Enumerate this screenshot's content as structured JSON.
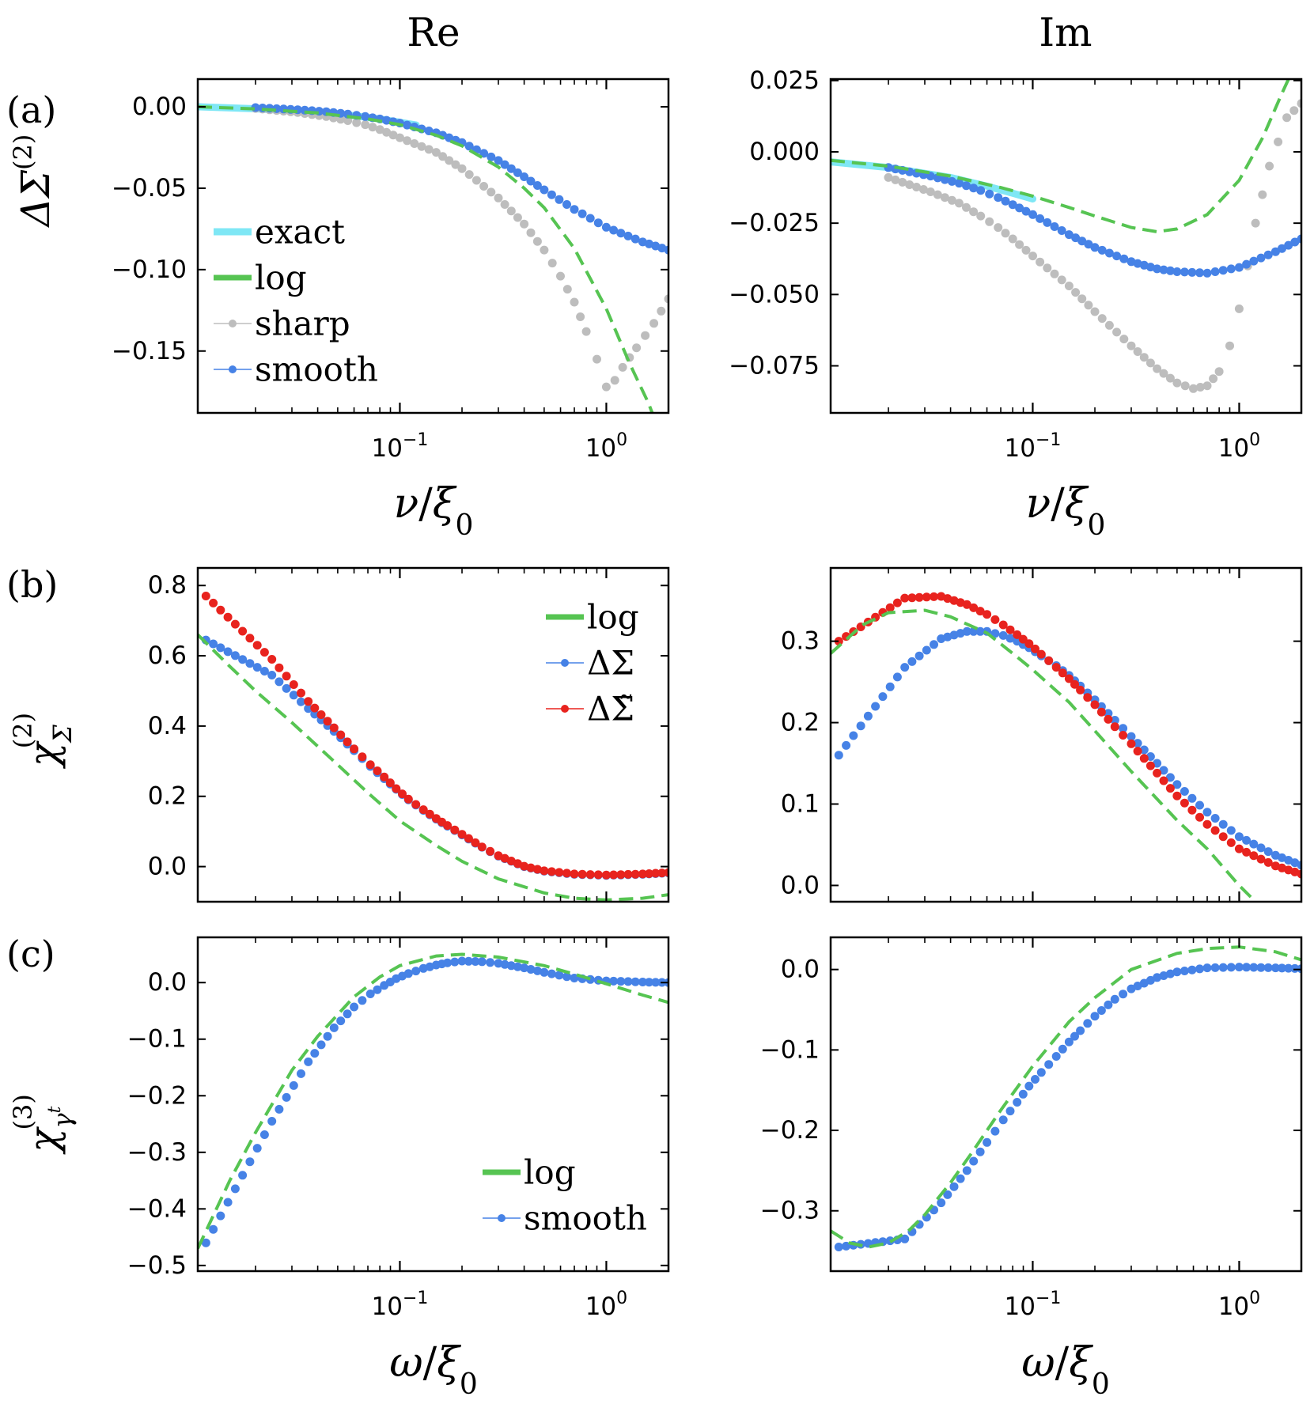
{
  "figure": {
    "column_titles": [
      "Re",
      "Im"
    ],
    "row_labels": [
      "(a)",
      "(b)",
      "(c)"
    ],
    "row_ylabels": [
      {
        "base": "ΔΣ",
        "sup": "(2)",
        "sub": ""
      },
      {
        "base": "χ",
        "sup": "(2)",
        "sub": "Σ"
      },
      {
        "base": "χ",
        "sup": "(3)",
        "sub": "γ",
        "subsup": "t"
      }
    ],
    "xlabels": {
      "a": {
        "num": "ν",
        "den": "ξ",
        "sub": "0"
      },
      "c": {
        "num": "ω",
        "den": "ξ",
        "sub": "0"
      }
    },
    "xtick_labels": [
      {
        "value": 0.1,
        "base": "10",
        "exp": "−1"
      },
      {
        "value": 1,
        "base": "10",
        "exp": "0"
      }
    ],
    "colors": {
      "exact": "#7fe7f5",
      "log": "#56c452",
      "sharp": "#bdbdbd",
      "smooth": "#4682e6",
      "tilde": "#e8231e"
    }
  },
  "chart_data": [
    {
      "id": "a-re",
      "type": "scatter",
      "xscale": "log",
      "xlim": [
        0.0105,
        2.0
      ],
      "ylim": [
        -0.188,
        0.017
      ],
      "yticks": [
        0.0,
        -0.05,
        -0.1,
        -0.15
      ],
      "ytick_labels": [
        "0.00",
        "−0.05",
        "−0.10",
        "−0.15"
      ],
      "legend": {
        "placement": "center-left",
        "entries": [
          "exact",
          "log",
          "sharp",
          "smooth"
        ]
      },
      "series": [
        {
          "name": "exact",
          "kind": "line",
          "x": [
            0.0105,
            0.02,
            0.04,
            0.06,
            0.08,
            0.1,
            0.12
          ],
          "y": [
            0.0,
            -0.0012,
            -0.0035,
            -0.0055,
            -0.0075,
            -0.0095,
            -0.0112
          ]
        },
        {
          "name": "log",
          "kind": "dashed",
          "x": [
            0.0105,
            0.02,
            0.04,
            0.07,
            0.1,
            0.15,
            0.2,
            0.3,
            0.4,
            0.5,
            0.7,
            1.0,
            1.3,
            1.6,
            1.75
          ],
          "y": [
            0.0,
            -0.0013,
            -0.0038,
            -0.0075,
            -0.011,
            -0.0175,
            -0.024,
            -0.037,
            -0.05,
            -0.062,
            -0.087,
            -0.124,
            -0.158,
            -0.182,
            -0.195
          ]
        },
        {
          "name": "sharp",
          "kind": "points",
          "x": [
            0.02,
            0.032,
            0.044,
            0.056,
            0.068,
            0.08,
            0.1,
            0.15,
            0.2,
            0.3,
            0.4,
            0.5,
            0.6,
            0.7,
            0.8,
            0.9,
            1.0,
            1.1,
            1.2,
            1.4,
            1.7,
            2.0
          ],
          "y": [
            -0.001,
            -0.0035,
            -0.006,
            -0.0085,
            -0.011,
            -0.014,
            -0.019,
            -0.028,
            -0.038,
            -0.056,
            -0.072,
            -0.088,
            -0.104,
            -0.12,
            -0.138,
            -0.155,
            -0.172,
            -0.168,
            -0.16,
            -0.148,
            -0.133,
            -0.118
          ]
        },
        {
          "name": "smooth",
          "kind": "points",
          "x": [
            0.02,
            0.032,
            0.044,
            0.056,
            0.068,
            0.08,
            0.1,
            0.15,
            0.2,
            0.3,
            0.4,
            0.5,
            0.7,
            1.0,
            1.5,
            2.0
          ],
          "y": [
            -0.0005,
            -0.0018,
            -0.003,
            -0.0045,
            -0.006,
            -0.0075,
            -0.01,
            -0.016,
            -0.022,
            -0.033,
            -0.043,
            -0.051,
            -0.063,
            -0.074,
            -0.083,
            -0.088
          ]
        }
      ]
    },
    {
      "id": "a-im",
      "type": "scatter",
      "xscale": "log",
      "xlim": [
        0.0105,
        2.0
      ],
      "ylim": [
        -0.0915,
        0.0255
      ],
      "yticks": [
        0.025,
        0.0,
        -0.025,
        -0.05,
        -0.075
      ],
      "ytick_labels": [
        "0.025",
        "0.000",
        "−0.025",
        "−0.050",
        "−0.075"
      ],
      "series": [
        {
          "name": "exact",
          "kind": "line",
          "x": [
            0.0105,
            0.02,
            0.04,
            0.06,
            0.08,
            0.1
          ],
          "y": [
            -0.0035,
            -0.0055,
            -0.009,
            -0.012,
            -0.0145,
            -0.0165
          ]
        },
        {
          "name": "log",
          "kind": "dashed",
          "x": [
            0.0105,
            0.02,
            0.04,
            0.07,
            0.1,
            0.15,
            0.2,
            0.3,
            0.4,
            0.5,
            0.7,
            1.0,
            1.3,
            1.6,
            1.85
          ],
          "y": [
            -0.003,
            -0.005,
            -0.0085,
            -0.0125,
            -0.0155,
            -0.0195,
            -0.0225,
            -0.0265,
            -0.028,
            -0.027,
            -0.022,
            -0.01,
            0.005,
            0.02,
            0.03
          ]
        },
        {
          "name": "sharp",
          "kind": "points",
          "x": [
            0.02,
            0.032,
            0.044,
            0.056,
            0.068,
            0.08,
            0.1,
            0.15,
            0.2,
            0.3,
            0.4,
            0.5,
            0.6,
            0.7,
            0.8,
            0.9,
            1.0,
            1.1,
            1.2,
            1.4,
            1.7,
            2.0
          ],
          "y": [
            -0.009,
            -0.014,
            -0.018,
            -0.0225,
            -0.0265,
            -0.0305,
            -0.0365,
            -0.047,
            -0.056,
            -0.068,
            -0.076,
            -0.081,
            -0.083,
            -0.082,
            -0.077,
            -0.068,
            -0.055,
            -0.04,
            -0.025,
            -0.005,
            0.012,
            0.017
          ]
        },
        {
          "name": "smooth",
          "kind": "points",
          "x": [
            0.02,
            0.032,
            0.044,
            0.056,
            0.068,
            0.08,
            0.1,
            0.15,
            0.2,
            0.3,
            0.4,
            0.5,
            0.7,
            1.0,
            1.5,
            2.0
          ],
          "y": [
            -0.0055,
            -0.0085,
            -0.011,
            -0.0135,
            -0.016,
            -0.0185,
            -0.022,
            -0.029,
            -0.0335,
            -0.0385,
            -0.041,
            -0.042,
            -0.0425,
            -0.0405,
            -0.035,
            -0.0305
          ]
        }
      ]
    },
    {
      "id": "b-re",
      "type": "scatter",
      "xscale": "log",
      "xlim": [
        0.0105,
        2.0
      ],
      "ylim": [
        -0.1,
        0.85
      ],
      "yticks": [
        0.8,
        0.6,
        0.4,
        0.2,
        0.0
      ],
      "ytick_labels": [
        "0.8",
        "0.6",
        "0.4",
        "0.2",
        "0.0"
      ],
      "legend": {
        "placement": "top-right",
        "entries": [
          "log",
          "ΔΣ",
          "ΔΣ̃"
        ]
      },
      "series": [
        {
          "name": "log",
          "kind": "dashed",
          "x": [
            0.0105,
            0.015,
            0.02,
            0.03,
            0.05,
            0.07,
            0.1,
            0.15,
            0.2,
            0.3,
            0.5,
            0.7,
            1.0,
            1.5,
            2.0
          ],
          "y": [
            0.66,
            0.57,
            0.5,
            0.41,
            0.29,
            0.21,
            0.13,
            0.06,
            0.015,
            -0.035,
            -0.075,
            -0.09,
            -0.095,
            -0.09,
            -0.08
          ]
        },
        {
          "name": "ΔΣ",
          "kind": "points",
          "x": [
            0.0115,
            0.024,
            0.036,
            0.048,
            0.06,
            0.072,
            0.084,
            0.096,
            0.11,
            0.13,
            0.15,
            0.17,
            0.2,
            0.25,
            0.3,
            0.4,
            0.5,
            0.7,
            1.0,
            1.5,
            2.0
          ],
          "y": [
            0.645,
            0.545,
            0.45,
            0.385,
            0.33,
            0.285,
            0.25,
            0.22,
            0.19,
            0.16,
            0.135,
            0.115,
            0.09,
            0.055,
            0.03,
            0.0,
            -0.013,
            -0.022,
            -0.025,
            -0.022,
            -0.018
          ]
        },
        {
          "name": "ΔΣ̃",
          "kind": "points",
          "x": [
            0.0115,
            0.024,
            0.036,
            0.048,
            0.06,
            0.072,
            0.084,
            0.096,
            0.11,
            0.13,
            0.15,
            0.17,
            0.2,
            0.25,
            0.3,
            0.4,
            0.5,
            0.7,
            1.0,
            1.5,
            2.0
          ],
          "y": [
            0.77,
            0.59,
            0.47,
            0.395,
            0.335,
            0.29,
            0.255,
            0.222,
            0.192,
            0.162,
            0.137,
            0.117,
            0.092,
            0.056,
            0.031,
            0.001,
            -0.012,
            -0.021,
            -0.024,
            -0.021,
            -0.017
          ]
        }
      ]
    },
    {
      "id": "b-im",
      "type": "scatter",
      "xscale": "log",
      "xlim": [
        0.0105,
        2.0
      ],
      "ylim": [
        -0.02,
        0.39
      ],
      "yticks": [
        0.3,
        0.2,
        0.1,
        0.0
      ],
      "ytick_labels": [
        "0.3",
        "0.2",
        "0.1",
        "0.0"
      ],
      "series": [
        {
          "name": "log",
          "kind": "dashed",
          "x": [
            0.0105,
            0.015,
            0.02,
            0.03,
            0.04,
            0.06,
            0.08,
            0.1,
            0.15,
            0.2,
            0.3,
            0.5,
            0.7,
            1.0,
            1.2
          ],
          "y": [
            0.285,
            0.32,
            0.335,
            0.338,
            0.33,
            0.31,
            0.285,
            0.265,
            0.225,
            0.19,
            0.14,
            0.08,
            0.045,
            0.0,
            -0.02
          ]
        },
        {
          "name": "ΔΣ",
          "kind": "points",
          "x": [
            0.0115,
            0.024,
            0.036,
            0.048,
            0.06,
            0.072,
            0.084,
            0.096,
            0.11,
            0.13,
            0.15,
            0.17,
            0.2,
            0.25,
            0.3,
            0.4,
            0.5,
            0.7,
            1.0,
            1.5,
            2.0
          ],
          "y": [
            0.16,
            0.268,
            0.303,
            0.312,
            0.312,
            0.307,
            0.3,
            0.292,
            0.282,
            0.27,
            0.258,
            0.245,
            0.228,
            0.203,
            0.183,
            0.15,
            0.124,
            0.09,
            0.06,
            0.037,
            0.025
          ]
        },
        {
          "name": "ΔΣ̃",
          "kind": "points",
          "x": [
            0.0115,
            0.024,
            0.036,
            0.048,
            0.06,
            0.072,
            0.084,
            0.096,
            0.11,
            0.13,
            0.15,
            0.17,
            0.2,
            0.25,
            0.3,
            0.4,
            0.5,
            0.7,
            1.0,
            1.5,
            2.0
          ],
          "y": [
            0.3,
            0.353,
            0.355,
            0.345,
            0.333,
            0.32,
            0.308,
            0.297,
            0.284,
            0.268,
            0.254,
            0.24,
            0.222,
            0.195,
            0.174,
            0.138,
            0.11,
            0.075,
            0.045,
            0.024,
            0.014
          ]
        }
      ]
    },
    {
      "id": "c-re",
      "type": "scatter",
      "xscale": "log",
      "xlim": [
        0.0105,
        2.0
      ],
      "ylim": [
        -0.51,
        0.08
      ],
      "yticks": [
        0.0,
        -0.1,
        -0.2,
        -0.3,
        -0.4,
        -0.5
      ],
      "ytick_labels": [
        "0.0",
        "−0.1",
        "−0.2",
        "−0.3",
        "−0.4",
        "−0.5"
      ],
      "legend": {
        "placement": "bottom-right",
        "entries": [
          "log",
          "smooth"
        ]
      },
      "series": [
        {
          "name": "log",
          "kind": "dashed",
          "x": [
            0.0105,
            0.015,
            0.02,
            0.03,
            0.04,
            0.06,
            0.08,
            0.1,
            0.15,
            0.2,
            0.3,
            0.5,
            0.7,
            1.0,
            1.5,
            2.0
          ],
          "y": [
            -0.47,
            -0.35,
            -0.265,
            -0.155,
            -0.095,
            -0.025,
            0.01,
            0.03,
            0.047,
            0.05,
            0.045,
            0.03,
            0.015,
            -0.002,
            -0.022,
            -0.035
          ]
        },
        {
          "name": "smooth",
          "kind": "points",
          "x": [
            0.0115,
            0.024,
            0.036,
            0.048,
            0.06,
            0.072,
            0.084,
            0.096,
            0.11,
            0.13,
            0.15,
            0.17,
            0.2,
            0.25,
            0.3,
            0.4,
            0.5,
            0.7,
            1.0,
            1.5,
            2.0
          ],
          "y": [
            -0.46,
            -0.245,
            -0.14,
            -0.08,
            -0.043,
            -0.02,
            -0.005,
            0.007,
            0.016,
            0.025,
            0.031,
            0.035,
            0.038,
            0.037,
            0.034,
            0.026,
            0.018,
            0.008,
            0.003,
            0.001,
            0.0
          ]
        }
      ]
    },
    {
      "id": "c-im",
      "type": "scatter",
      "xscale": "log",
      "xlim": [
        0.0105,
        2.0
      ],
      "ylim": [
        -0.375,
        0.04
      ],
      "yticks": [
        0.0,
        -0.1,
        -0.2,
        -0.3
      ],
      "ytick_labels": [
        "0.0",
        "−0.1",
        "−0.2",
        "−0.3"
      ],
      "series": [
        {
          "name": "log",
          "kind": "dashed",
          "x": [
            0.0105,
            0.013,
            0.016,
            0.02,
            0.025,
            0.03,
            0.04,
            0.05,
            0.07,
            0.1,
            0.15,
            0.2,
            0.3,
            0.5,
            0.7,
            1.0,
            1.5,
            2.0
          ],
          "y": [
            -0.325,
            -0.34,
            -0.345,
            -0.34,
            -0.325,
            -0.305,
            -0.265,
            -0.23,
            -0.175,
            -0.12,
            -0.065,
            -0.035,
            0.0,
            0.02,
            0.026,
            0.028,
            0.022,
            0.012
          ]
        },
        {
          "name": "smooth",
          "kind": "points",
          "x": [
            0.0115,
            0.024,
            0.036,
            0.048,
            0.06,
            0.072,
            0.084,
            0.096,
            0.11,
            0.13,
            0.15,
            0.17,
            0.2,
            0.25,
            0.3,
            0.4,
            0.5,
            0.7,
            1.0,
            1.5,
            2.0
          ],
          "y": [
            -0.345,
            -0.335,
            -0.29,
            -0.25,
            -0.215,
            -0.187,
            -0.165,
            -0.145,
            -0.128,
            -0.108,
            -0.09,
            -0.076,
            -0.058,
            -0.037,
            -0.024,
            -0.01,
            -0.003,
            0.002,
            0.003,
            0.002,
            0.001
          ]
        }
      ]
    }
  ]
}
